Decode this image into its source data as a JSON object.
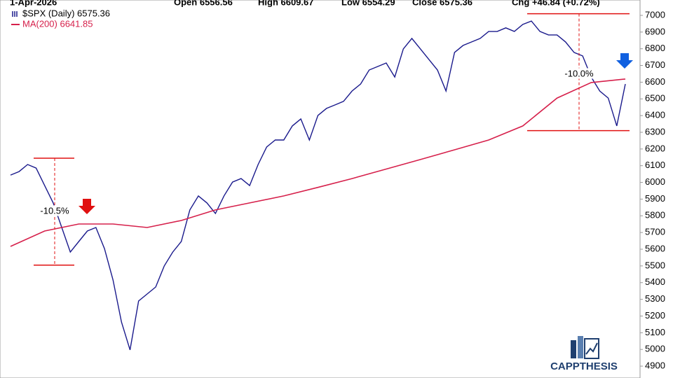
{
  "chart_data": {
    "type": "line",
    "header": [
      "1-Apr-2026",
      "Open 6556.56",
      "High 6609.67",
      "Low 6554.29",
      "Close 6575.36",
      "Chg +46.84 (+0.72%)"
    ],
    "series": [
      {
        "name": "$SPX (Daily) 6575.36",
        "color": "#1a1a8c",
        "values": [
          6044,
          6065,
          6107,
          6086,
          5981,
          5877,
          5730,
          5583,
          5646,
          5709,
          5730,
          5604,
          5416,
          5164,
          4997,
          5290,
          5332,
          5374,
          5500,
          5583,
          5646,
          5835,
          5919,
          5877,
          5814,
          5919,
          6002,
          6023,
          5981,
          6107,
          6212,
          6254,
          6254,
          6338,
          6380,
          6254,
          6401,
          6443,
          6464,
          6485,
          6547,
          6589,
          6673,
          6694,
          6715,
          6631,
          6799,
          6862,
          6799,
          6736,
          6673,
          6547,
          6778,
          6820,
          6841,
          6862,
          6904,
          6904,
          6925,
          6904,
          6946,
          6966,
          6904,
          6883,
          6883,
          6841,
          6778,
          6757,
          6631,
          6547,
          6505,
          6338,
          6589
        ]
      },
      {
        "name": "MA(200) 6641.85",
        "color": "#d6204b",
        "values": [
          5617,
          5709,
          5751,
          5751,
          5730,
          5772,
          5835,
          5877,
          5919,
          5970,
          6023,
          6080,
          6137,
          6195,
          6254,
          6338,
          6505,
          6598,
          6619
        ]
      }
    ],
    "ranges": [
      {
        "label": "-10.5%",
        "values": [
          6145,
          5505
        ]
      },
      {
        "label": "-10.0%",
        "values": [
          7010,
          6310
        ]
      }
    ],
    "watermark": "CAPPTHESIS",
    "ylim": [
      4829,
      7092
    ],
    "yticks": [
      4900,
      5000,
      5100,
      5200,
      5300,
      5400,
      5500,
      5600,
      5700,
      5800,
      5900,
      6000,
      6100,
      6200,
      6300,
      6400,
      6500,
      6600,
      6700,
      6800,
      6900,
      7000
    ],
    "grid": false
  }
}
